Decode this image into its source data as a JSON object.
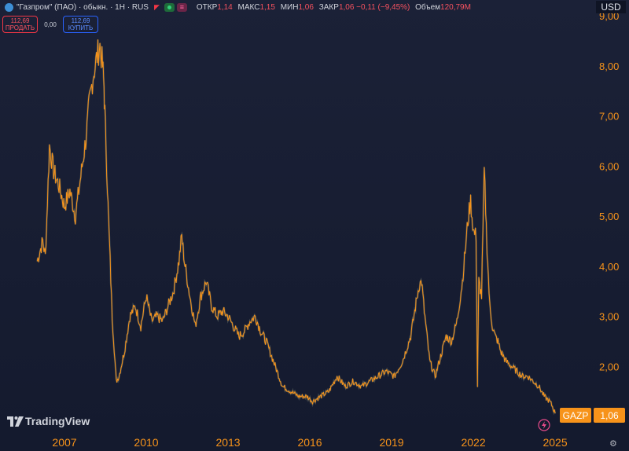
{
  "header": {
    "title": "\"Газпром\" (ПАО) · обыкн. · 1Н · RUS",
    "ohlc": [
      {
        "label": "ОТКР",
        "value": "1,14"
      },
      {
        "label": "МАКС",
        "value": "1,15"
      },
      {
        "label": "МИН",
        "value": "1,06"
      },
      {
        "label": "ЗАКР",
        "value": "1,06 −0,11 (−9,45%)"
      },
      {
        "label": "Объем",
        "value": "120,79M"
      }
    ]
  },
  "trade": {
    "sell_price": "112,69",
    "sell_label": "ПРОДАТЬ",
    "spread": "0,00",
    "buy_price": "112,69",
    "buy_label": "КУПИТЬ"
  },
  "currency": "USD",
  "logo_text": "TradingView",
  "colors": {
    "up": "#f7931a",
    "down": "#d98e1e",
    "accent": "#f7931a",
    "background": "#161c30"
  },
  "chart_data": {
    "type": "line",
    "symbol": "GAZP",
    "last_value": "1,06",
    "y_ticks": [
      "9,00",
      "8,00",
      "7,00",
      "6,00",
      "5,00",
      "4,00",
      "3,00",
      "2,00"
    ],
    "x_ticks": [
      "2007",
      "2010",
      "2013",
      "2016",
      "2019",
      "2022",
      "2025"
    ],
    "ylim": [
      1.0,
      9.0
    ],
    "grid": false,
    "series": [
      {
        "x": [
          2006.0,
          2006.1,
          2006.2,
          2006.3,
          2006.45,
          2006.6,
          2006.8,
          2007.0,
          2007.2,
          2007.4,
          2007.6,
          2007.8,
          2007.9,
          2008.05,
          2008.2,
          2008.3,
          2008.4,
          2008.45,
          2008.5,
          2008.6,
          2008.75,
          2008.9,
          2009.0,
          2009.2,
          2009.4,
          2009.6,
          2009.8,
          2010.0,
          2010.2,
          2010.4,
          2010.6,
          2010.8,
          2011.0,
          2011.2,
          2011.3,
          2011.4,
          2011.6,
          2011.8,
          2012.0,
          2012.2,
          2012.4,
          2012.6,
          2012.8,
          2013.0,
          2013.2,
          2013.4,
          2013.6,
          2013.8,
          2014.0,
          2014.2,
          2014.4,
          2014.6,
          2014.8,
          2015.0,
          2015.3,
          2015.6,
          2015.9,
          2016.1,
          2016.4,
          2016.7,
          2017.0,
          2017.3,
          2017.6,
          2017.9,
          2018.2,
          2018.5,
          2018.8,
          2019.1,
          2019.4,
          2019.7,
          2020.0,
          2020.1,
          2020.2,
          2020.4,
          2020.6,
          2020.8,
          2021.0,
          2021.2,
          2021.4,
          2021.6,
          2021.8,
          2021.9,
          2022.0,
          2022.1,
          2022.15,
          2022.2,
          2022.3,
          2022.4,
          2022.5,
          2022.6,
          2022.7,
          2022.8,
          2022.9,
          2023.0,
          2023.2,
          2023.4,
          2023.6,
          2023.8,
          2024.0,
          2024.2,
          2024.4,
          2024.6,
          2024.8,
          2024.9,
          2025.0
        ],
        "y": [
          4.1,
          4.3,
          4.5,
          4.2,
          6.4,
          5.9,
          5.6,
          5.2,
          5.5,
          5.0,
          5.8,
          6.6,
          7.2,
          7.8,
          8.2,
          8.4,
          8.0,
          7.6,
          6.8,
          5.2,
          3.0,
          1.7,
          1.8,
          2.3,
          3.0,
          3.2,
          2.8,
          3.4,
          2.9,
          3.0,
          2.9,
          3.2,
          3.5,
          4.1,
          4.6,
          4.1,
          3.4,
          2.8,
          3.4,
          3.7,
          3.2,
          3.0,
          3.1,
          3.0,
          2.8,
          2.6,
          2.7,
          2.9,
          3.0,
          2.7,
          2.5,
          2.2,
          1.9,
          1.6,
          1.5,
          1.4,
          1.4,
          1.3,
          1.4,
          1.5,
          1.8,
          1.6,
          1.7,
          1.6,
          1.7,
          1.8,
          1.9,
          1.8,
          2.1,
          2.6,
          3.6,
          3.7,
          3.1,
          2.1,
          1.8,
          2.2,
          2.6,
          2.5,
          2.9,
          3.7,
          4.9,
          5.3,
          4.7,
          4.6,
          1.6,
          3.7,
          3.4,
          5.9,
          4.4,
          3.2,
          2.8,
          2.6,
          2.5,
          2.3,
          2.1,
          2.0,
          1.9,
          1.8,
          1.8,
          1.7,
          1.6,
          1.4,
          1.3,
          1.2,
          1.06
        ]
      }
    ]
  }
}
